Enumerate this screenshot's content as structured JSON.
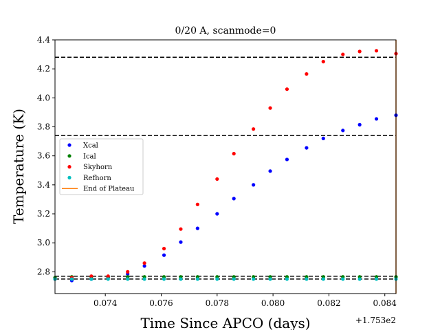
{
  "chart_data": {
    "type": "scatter",
    "title": "0/20 A, scanmode=0",
    "xlabel": "Time Since APCO (days)",
    "ylabel": "Temperature (K)",
    "x_offset_label": "+1.753e2",
    "xlim": [
      0.0722,
      0.0844
    ],
    "ylim": [
      2.65,
      4.4
    ],
    "xticks": [
      0.074,
      0.076,
      0.078,
      0.08,
      0.082,
      0.084
    ],
    "xtick_labels": [
      "0.074",
      "0.076",
      "0.078",
      "0.080",
      "0.082",
      "0.084"
    ],
    "yticks": [
      2.8,
      3.0,
      3.2,
      3.4,
      3.6,
      3.8,
      4.0,
      4.2,
      4.4
    ],
    "ytick_labels": [
      "2.8",
      "3.0",
      "3.2",
      "3.4",
      "3.6",
      "3.8",
      "4.0",
      "4.2",
      "4.4"
    ],
    "grid": false,
    "legend_position": "center-left",
    "x": [
      0.0722,
      0.0728,
      0.0735,
      0.0741,
      0.0748,
      0.0754,
      0.0761,
      0.0767,
      0.0773,
      0.078,
      0.0786,
      0.0793,
      0.0799,
      0.0805,
      0.0812,
      0.0818,
      0.0825,
      0.0831,
      0.0837,
      0.0844
    ],
    "series": [
      {
        "name": "Xcal",
        "color": "#0000ff",
        "values": [
          2.75,
          2.74,
          2.75,
          2.76,
          2.785,
          2.84,
          2.915,
          3.005,
          3.1,
          3.2,
          3.305,
          3.4,
          3.495,
          3.575,
          3.655,
          3.72,
          3.775,
          3.815,
          3.855,
          3.88
        ]
      },
      {
        "name": "Ical",
        "color": "#008000",
        "values": [
          2.76,
          2.765,
          2.765,
          2.765,
          2.765,
          2.765,
          2.765,
          2.765,
          2.765,
          2.765,
          2.765,
          2.765,
          2.765,
          2.765,
          2.765,
          2.765,
          2.765,
          2.765,
          2.765,
          2.765
        ]
      },
      {
        "name": "Skyhorn",
        "color": "#ff0000",
        "values": [
          2.75,
          2.76,
          2.77,
          2.77,
          2.8,
          2.86,
          2.96,
          3.095,
          3.265,
          3.44,
          3.615,
          3.785,
          3.93,
          4.06,
          4.165,
          4.25,
          4.3,
          4.32,
          4.325,
          4.305
        ]
      },
      {
        "name": "Refhorn",
        "color": "#00bfbf",
        "values": [
          2.75,
          2.75,
          2.75,
          2.75,
          2.75,
          2.75,
          2.75,
          2.75,
          2.75,
          2.75,
          2.75,
          2.75,
          2.75,
          2.75,
          2.75,
          2.75,
          2.75,
          2.75,
          2.75,
          2.75
        ]
      }
    ],
    "end_of_plateau": {
      "name": "End of Plateau",
      "color": "#ff7f0e",
      "x": 0.0844
    },
    "hlines": [
      4.28,
      3.74,
      2.77,
      2.75
    ]
  }
}
